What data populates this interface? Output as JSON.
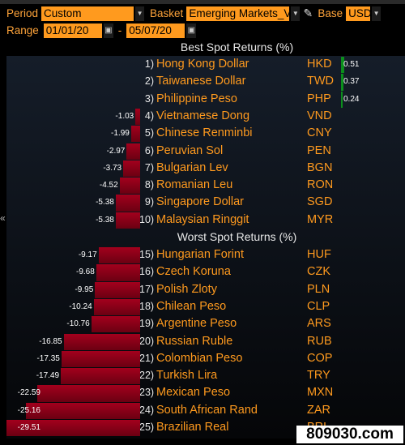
{
  "controls": {
    "period_label": "Period",
    "period_value": "Custom",
    "basket_label": "Basket",
    "basket_value": "Emerging Markets_VN",
    "base_label": "Base",
    "base_value": "USD",
    "range_label": "Range",
    "start_date": "01/01/20",
    "range_sep": "-",
    "end_date": "05/07/20"
  },
  "titles": {
    "best": "Best Spot Returns (%)",
    "worst": "Worst Spot Returns (%)"
  },
  "chart_data": {
    "type": "bar",
    "ylabel": "Spot Returns (%)",
    "categories": [
      "Hong Kong Dollar",
      "Taiwanese Dollar",
      "Philippine Peso",
      "Vietnamese Dong",
      "Chinese Renminbi",
      "Peruvian Sol",
      "Bulgarian Lev",
      "Romanian Leu",
      "Singapore Dollar",
      "Malaysian Ringgit",
      "Hungarian Forint",
      "Czech Koruna",
      "Polish Zloty",
      "Chilean Peso",
      "Argentine Peso",
      "Russian Ruble",
      "Colombian Peso",
      "Turkish Lira",
      "Mexican Peso",
      "South African Rand",
      "Brazilian Real"
    ],
    "best": [
      {
        "rank": "1)",
        "name": "Hong Kong Dollar",
        "code": "HKD",
        "value": 0.51,
        "label": "0.51"
      },
      {
        "rank": "2)",
        "name": "Taiwanese Dollar",
        "code": "TWD",
        "value": 0.37,
        "label": "0.37"
      },
      {
        "rank": "3)",
        "name": "Philippine Peso",
        "code": "PHP",
        "value": 0.24,
        "label": "0.24"
      },
      {
        "rank": "4)",
        "name": "Vietnamese Dong",
        "code": "VND",
        "value": -1.03,
        "label": "-1.03"
      },
      {
        "rank": "5)",
        "name": "Chinese Renminbi",
        "code": "CNY",
        "value": -1.99,
        "label": "-1.99"
      },
      {
        "rank": "6)",
        "name": "Peruvian Sol",
        "code": "PEN",
        "value": -2.97,
        "label": "-2.97"
      },
      {
        "rank": "7)",
        "name": "Bulgarian Lev",
        "code": "BGN",
        "value": -3.73,
        "label": "-3.73"
      },
      {
        "rank": "8)",
        "name": "Romanian Leu",
        "code": "RON",
        "value": -4.52,
        "label": "-4.52"
      },
      {
        "rank": "9)",
        "name": "Singapore Dollar",
        "code": "SGD",
        "value": -5.38,
        "label": "-5.38"
      },
      {
        "rank": "10)",
        "name": "Malaysian Ringgit",
        "code": "MYR",
        "value": -5.38,
        "label": "-5.38"
      }
    ],
    "worst": [
      {
        "rank": "15)",
        "name": "Hungarian Forint",
        "code": "HUF",
        "value": -9.17,
        "label": "-9.17"
      },
      {
        "rank": "16)",
        "name": "Czech Koruna",
        "code": "CZK",
        "value": -9.68,
        "label": "-9.68"
      },
      {
        "rank": "17)",
        "name": "Polish Zloty",
        "code": "PLN",
        "value": -9.95,
        "label": "-9.95"
      },
      {
        "rank": "18)",
        "name": "Chilean Peso",
        "code": "CLP",
        "value": -10.24,
        "label": "-10.24"
      },
      {
        "rank": "19)",
        "name": "Argentine Peso",
        "code": "ARS",
        "value": -10.76,
        "label": "-10.76"
      },
      {
        "rank": "20)",
        "name": "Russian Ruble",
        "code": "RUB",
        "value": -16.85,
        "label": "-16.85"
      },
      {
        "rank": "21)",
        "name": "Colombian Peso",
        "code": "COP",
        "value": -17.35,
        "label": "-17.35"
      },
      {
        "rank": "22)",
        "name": "Turkish Lira",
        "code": "TRY",
        "value": -17.49,
        "label": "-17.49"
      },
      {
        "rank": "23)",
        "name": "Mexican Peso",
        "code": "MXN",
        "value": -22.59,
        "label": "-22.59"
      },
      {
        "rank": "24)",
        "name": "South African Rand",
        "code": "ZAR",
        "value": -25.16,
        "label": "-25.16"
      },
      {
        "rank": "25)",
        "name": "Brazilian Real",
        "code": "BRL",
        "value": -29.51,
        "label": "-29.51"
      }
    ],
    "colors": {
      "positive": "#0b8f1c",
      "negative": "#a3001d",
      "labels": "#ff9a1e"
    }
  },
  "nav": {
    "collapse_glyph": "«"
  },
  "watermark": "809030.com"
}
